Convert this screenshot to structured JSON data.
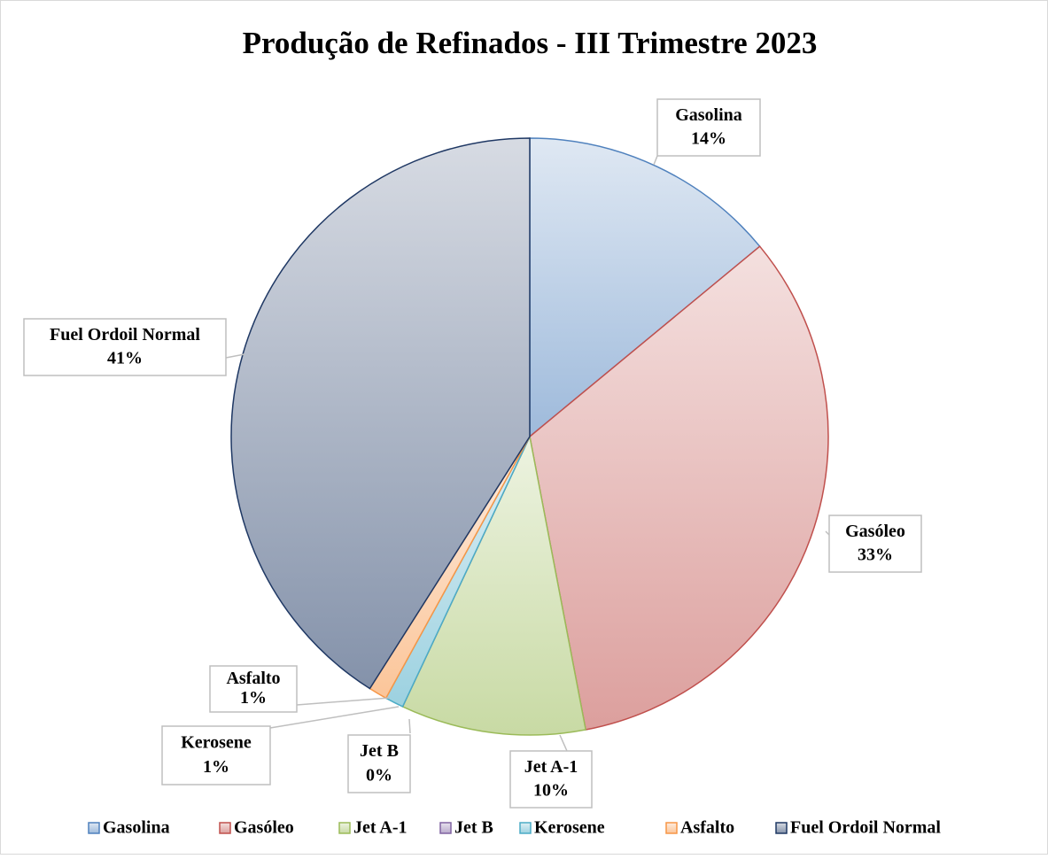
{
  "chart_data": {
    "type": "pie",
    "title": "Produção de Refinados - III  Trimestre 2023",
    "categories": [
      "Gasolina",
      "Gasóleo",
      "Jet A-1",
      "Jet B",
      "Kerosene",
      "Asfalto",
      "Fuel Ordoil Normal"
    ],
    "values": [
      14,
      33,
      10,
      0,
      1,
      1,
      41
    ],
    "value_labels": [
      "14%",
      "33%",
      "10%",
      "0%",
      "1%",
      "1%",
      "41%"
    ],
    "colors": [
      "#4f81bd",
      "#c0504d",
      "#9bbb59",
      "#8064a2",
      "#4bacc6",
      "#f79646",
      "#1f3864"
    ],
    "legend": "bottom"
  }
}
